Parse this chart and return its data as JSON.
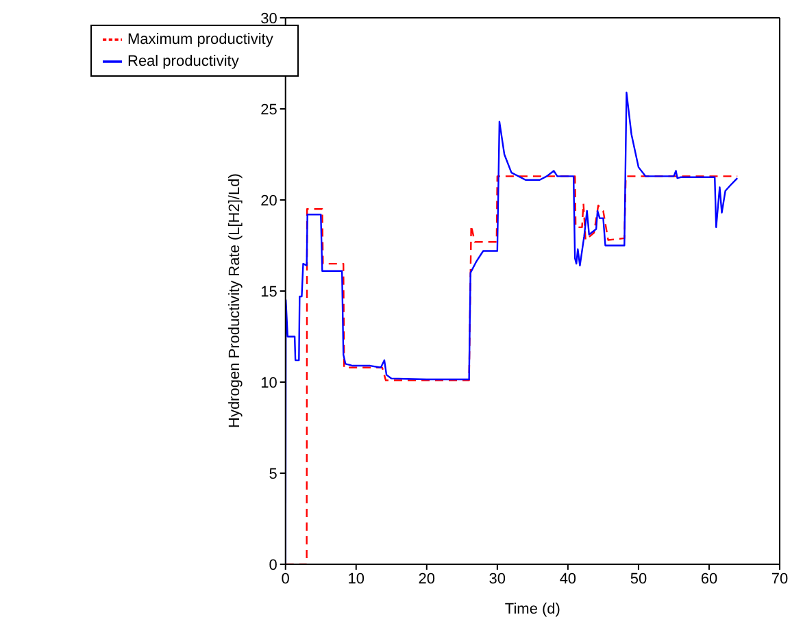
{
  "chart_data": {
    "type": "line",
    "xlabel": "Time (d)",
    "ylabel": "Hydrogen Productivity Rate (L[H2]/Ld)",
    "xlim": [
      0,
      70
    ],
    "ylim": [
      0,
      30
    ],
    "xticks": [
      0,
      10,
      20,
      30,
      40,
      50,
      60,
      70
    ],
    "yticks": [
      0,
      5,
      10,
      15,
      20,
      25,
      30
    ],
    "legend": "top left",
    "marker": "none",
    "series": [
      {
        "name": "Maximum productivity",
        "color": "#ff0000",
        "line_style": "dashed",
        "x": [
          0,
          3,
          3.05,
          5.2,
          5.3,
          8.2,
          8.3,
          13.7,
          14.2,
          26,
          26.3,
          26.8,
          29.9,
          30,
          41,
          41.1,
          42,
          42.2,
          42.5,
          43.7,
          44.3,
          45,
          45.7,
          48,
          48.2,
          64
        ],
        "values": [
          0,
          0,
          19.5,
          19.5,
          16.5,
          16.5,
          10.8,
          10.8,
          10.1,
          10.1,
          18.6,
          17.7,
          17.7,
          21.3,
          21.3,
          18.5,
          18.5,
          19.8,
          17.8,
          18.2,
          19.7,
          19.4,
          17.8,
          17.9,
          21.3,
          21.3
        ]
      },
      {
        "name": "Real productivity",
        "color": "#0000ff",
        "line_style": "solid",
        "x": [
          0,
          0.05,
          0.3,
          1.3,
          1.4,
          1.9,
          2,
          2.3,
          2.5,
          3,
          3.1,
          5,
          5.2,
          8,
          8.2,
          8.5,
          9.5,
          12,
          13.5,
          14,
          14.3,
          15,
          20,
          26,
          26.2,
          27,
          28,
          30,
          30.3,
          31,
          32,
          33,
          34,
          36,
          37,
          38,
          38.5,
          40.8,
          41,
          41.2,
          41.4,
          41.7,
          42.3,
          42.7,
          43,
          44,
          44.2,
          44.5,
          45,
          45.3,
          48,
          48.3,
          49,
          50,
          51,
          55,
          55.3,
          55.5,
          56,
          60.8,
          61,
          61.5,
          61.8,
          62.3,
          63,
          64
        ],
        "values": [
          0,
          14.5,
          12.5,
          12.5,
          11.2,
          11.2,
          14.7,
          14.7,
          16.5,
          16.4,
          19.2,
          19.2,
          16.1,
          16.1,
          11.5,
          11,
          10.9,
          10.9,
          10.8,
          11.2,
          10.4,
          10.2,
          10.15,
          10.15,
          16,
          16.6,
          17.2,
          17.2,
          24.3,
          22.5,
          21.5,
          21.3,
          21.1,
          21.1,
          21.3,
          21.6,
          21.3,
          21.3,
          16.8,
          16.5,
          17.3,
          16.4,
          18,
          19.4,
          18.1,
          18.4,
          19.4,
          19,
          19,
          17.5,
          17.5,
          25.9,
          23.6,
          21.8,
          21.3,
          21.3,
          21.6,
          21.2,
          21.25,
          21.25,
          18.5,
          20.7,
          19.3,
          20.5,
          20.8,
          21.2
        ]
      }
    ]
  }
}
